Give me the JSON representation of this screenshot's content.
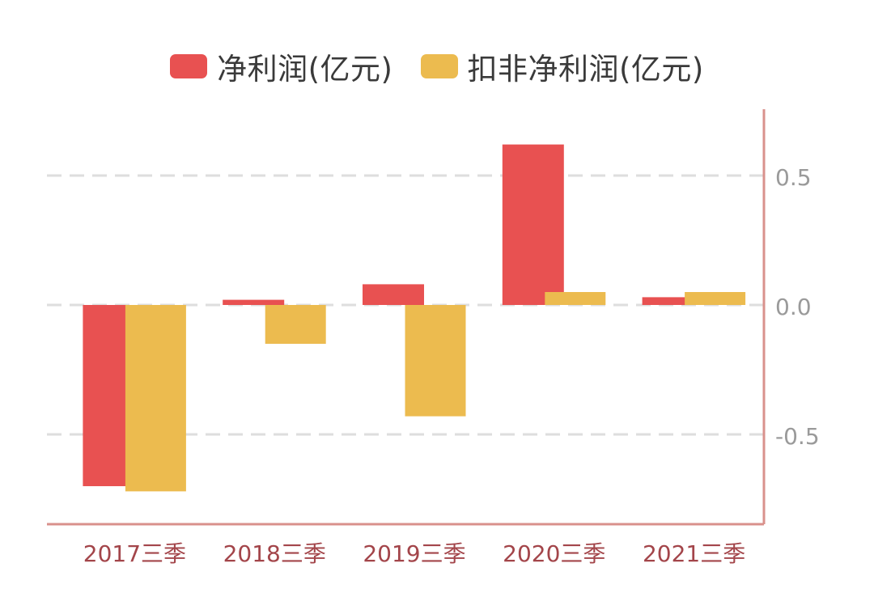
{
  "chart_data": {
    "type": "bar",
    "categories": [
      "2017三季",
      "2018三季",
      "2019三季",
      "2020三季",
      "2021三季"
    ],
    "series": [
      {
        "name": "净利润(亿元)",
        "color": "#e85151",
        "values": [
          -0.7,
          0.02,
          0.08,
          0.62,
          0.03
        ]
      },
      {
        "name": "扣非净利润(亿元)",
        "color": "#ecbb4f",
        "values": [
          -0.72,
          -0.15,
          -0.43,
          0.05,
          0.05
        ]
      }
    ],
    "yticks": [
      "0.5",
      "0.0",
      "-0.5"
    ],
    "ylim": [
      -0.85,
      0.75
    ],
    "grid": true,
    "yaxis_position": "right",
    "legend_position": "top-center",
    "axis_color": "#d9918c",
    "category_label_color": "#a3454a",
    "tick_label_color": "#9a9a9a"
  }
}
